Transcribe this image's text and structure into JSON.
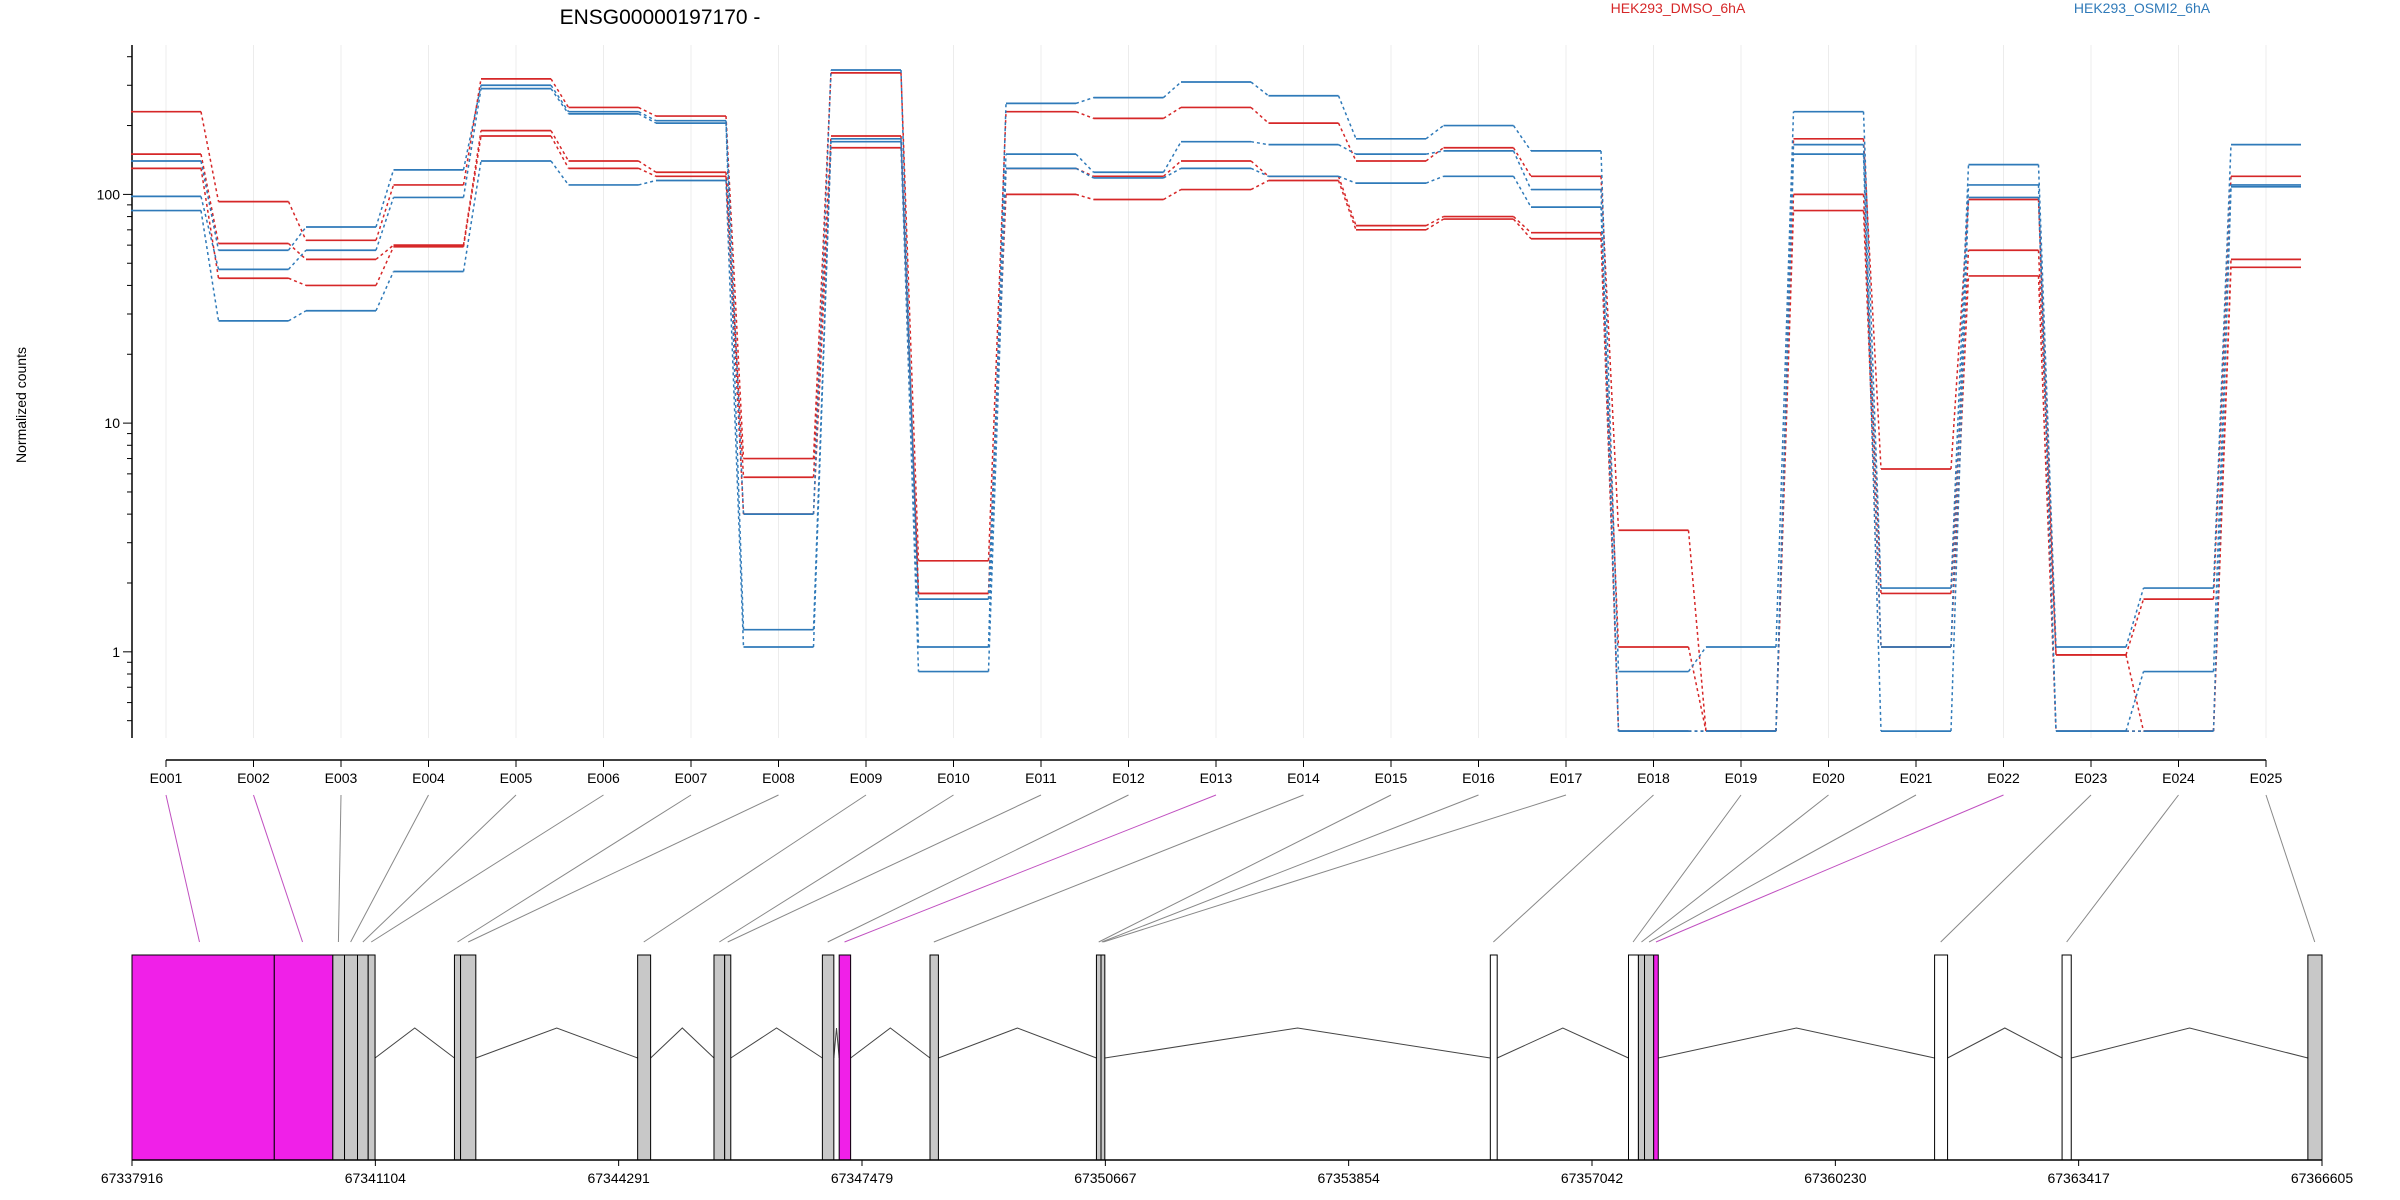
{
  "chart_data": {
    "type": "line",
    "title": "ENSG00000197170 -",
    "ylabel": "Normalized counts",
    "yscale": "log",
    "ylim": [
      0.42,
      450
    ],
    "yticks": [
      1,
      10,
      100
    ],
    "ytick_labels": [
      "1",
      "10",
      "100"
    ],
    "grid": true,
    "categories": [
      "E001",
      "E002",
      "E003",
      "E004",
      "E005",
      "E006",
      "E007",
      "E008",
      "E009",
      "E010",
      "E011",
      "E012",
      "E013",
      "E014",
      "E015",
      "E016",
      "E017",
      "E018",
      "E019",
      "E020",
      "E021",
      "E022",
      "E023",
      "E024",
      "E025"
    ],
    "legend": [
      {
        "label": "HEK293_DMSO_6hA",
        "color": "#d62728"
      },
      {
        "label": "HEK293_OSMI2_6hA",
        "color": "#2f7ab9"
      }
    ],
    "series": [
      {
        "group": 0,
        "values": [
          230,
          93,
          63,
          110,
          320,
          240,
          220,
          7,
          340,
          2.5,
          230,
          215,
          240,
          205,
          140,
          160,
          120,
          3.4,
          0.45,
          175,
          6.3,
          95,
          0.97,
          1.7,
          120
        ]
      },
      {
        "group": 0,
        "values": [
          150,
          61,
          52,
          60,
          190,
          140,
          125,
          5.8,
          180,
          1.8,
          130,
          120,
          140,
          120,
          73,
          80,
          68,
          1.05,
          0.45,
          100,
          1.8,
          57,
          0.97,
          0.45,
          52
        ]
      },
      {
        "group": 0,
        "values": [
          130,
          43,
          40,
          59,
          180,
          130,
          120,
          4,
          160,
          1.8,
          100,
          95,
          105,
          115,
          70,
          78,
          64,
          0.45,
          0.45,
          85,
          1.05,
          44,
          0.45,
          0.45,
          48
        ]
      },
      {
        "group": 1,
        "values": [
          140,
          57,
          72,
          128,
          300,
          230,
          210,
          4,
          350,
          1.05,
          250,
          265,
          310,
          270,
          175,
          200,
          155,
          0.82,
          1.05,
          230,
          1.9,
          135,
          1.05,
          1.9,
          165
        ]
      },
      {
        "group": 1,
        "values": [
          98,
          47,
          57,
          97,
          290,
          225,
          205,
          1.25,
          175,
          1.7,
          150,
          125,
          170,
          165,
          150,
          155,
          105,
          0.45,
          0.45,
          165,
          1.05,
          110,
          0.45,
          0.82,
          110
        ]
      },
      {
        "group": 1,
        "values": [
          85,
          28,
          31,
          46,
          140,
          110,
          115,
          1.05,
          170,
          0.82,
          130,
          118,
          130,
          120,
          112,
          120,
          88,
          0.45,
          0.45,
          150,
          0.45,
          97,
          0.45,
          0.45,
          108
        ]
      }
    ],
    "gene_model": {
      "coordinate_ticks": [
        "67337916",
        "67341104",
        "67344291",
        "67347479",
        "67350667",
        "67353854",
        "67357042",
        "67360230",
        "67363417",
        "67366605"
      ],
      "coord_min": 67337916,
      "coord_max": 67366605,
      "exons": [
        {
          "start": 67337916,
          "end": 67339780,
          "fill": "#f020e8"
        },
        {
          "start": 67339780,
          "end": 67340547,
          "fill": "#f020e8"
        },
        {
          "start": 67340547,
          "end": 67340700,
          "fill": "#c8c8c8"
        },
        {
          "start": 67340700,
          "end": 67340870,
          "fill": "#c8c8c8"
        },
        {
          "start": 67340870,
          "end": 67341010,
          "fill": "#c8c8c8"
        },
        {
          "start": 67341010,
          "end": 67341100,
          "fill": "#c8c8c8"
        },
        {
          "start": 67342140,
          "end": 67342220,
          "fill": "#c8c8c8"
        },
        {
          "start": 67342220,
          "end": 67342420,
          "fill": "#c8c8c8"
        },
        {
          "start": 67344540,
          "end": 67344710,
          "fill": "#c8c8c8"
        },
        {
          "start": 67345540,
          "end": 67345680,
          "fill": "#c8c8c8"
        },
        {
          "start": 67345680,
          "end": 67345760,
          "fill": "#c8c8c8"
        },
        {
          "start": 67346960,
          "end": 67347110,
          "fill": "#c8c8c8"
        },
        {
          "start": 67347180,
          "end": 67347330,
          "fill": "#f020e8"
        },
        {
          "start": 67348370,
          "end": 67348480,
          "fill": "#c8c8c8"
        },
        {
          "start": 67350550,
          "end": 67350610,
          "fill": "#c8c8c8"
        },
        {
          "start": 67350610,
          "end": 67350660,
          "fill": "#c8c8c8"
        },
        {
          "start": 67355710,
          "end": 67355800,
          "fill": "#ffffff"
        },
        {
          "start": 67357520,
          "end": 67357650,
          "fill": "#ffffff"
        },
        {
          "start": 67357650,
          "end": 67357730,
          "fill": "#c8c8c8"
        },
        {
          "start": 67357730,
          "end": 67357850,
          "fill": "#c8c8c8"
        },
        {
          "start": 67357850,
          "end": 67357910,
          "fill": "#f020e8"
        },
        {
          "start": 67361530,
          "end": 67361700,
          "fill": "#ffffff"
        },
        {
          "start": 67363200,
          "end": 67363320,
          "fill": "#ffffff"
        },
        {
          "start": 67366420,
          "end": 67366605,
          "fill": "#c8c8c8"
        }
      ],
      "links": [
        {
          "exon": "E001",
          "coord": 67338800,
          "color": "#c050c0"
        },
        {
          "exon": "E002",
          "coord": 67340150,
          "color": "#c050c0"
        },
        {
          "exon": "E003",
          "coord": 67340620,
          "color": "#888888"
        },
        {
          "exon": "E004",
          "coord": 67340780,
          "color": "#888888"
        },
        {
          "exon": "E005",
          "coord": 67340940,
          "color": "#888888"
        },
        {
          "exon": "E006",
          "coord": 67341050,
          "color": "#888888"
        },
        {
          "exon": "E007",
          "coord": 67342180,
          "color": "#888888"
        },
        {
          "exon": "E008",
          "coord": 67342320,
          "color": "#888888"
        },
        {
          "exon": "E009",
          "coord": 67344620,
          "color": "#888888"
        },
        {
          "exon": "E010",
          "coord": 67345610,
          "color": "#888888"
        },
        {
          "exon": "E011",
          "coord": 67345720,
          "color": "#888888"
        },
        {
          "exon": "E012",
          "coord": 67347030,
          "color": "#888888"
        },
        {
          "exon": "E013",
          "coord": 67347250,
          "color": "#c050c0"
        },
        {
          "exon": "E014",
          "coord": 67348420,
          "color": "#888888"
        },
        {
          "exon": "E015",
          "coord": 67350580,
          "color": "#888888"
        },
        {
          "exon": "E016",
          "coord": 67350620,
          "color": "#888888"
        },
        {
          "exon": "E017",
          "coord": 67350640,
          "color": "#888888"
        },
        {
          "exon": "E018",
          "coord": 67355750,
          "color": "#888888"
        },
        {
          "exon": "E019",
          "coord": 67357580,
          "color": "#888888"
        },
        {
          "exon": "E020",
          "coord": 67357690,
          "color": "#888888"
        },
        {
          "exon": "E021",
          "coord": 67357790,
          "color": "#888888"
        },
        {
          "exon": "E022",
          "coord": 67357880,
          "color": "#c050c0"
        },
        {
          "exon": "E023",
          "coord": 67361610,
          "color": "#888888"
        },
        {
          "exon": "E024",
          "coord": 67363260,
          "color": "#888888"
        },
        {
          "exon": "E025",
          "coord": 67366510,
          "color": "#888888"
        }
      ]
    }
  }
}
